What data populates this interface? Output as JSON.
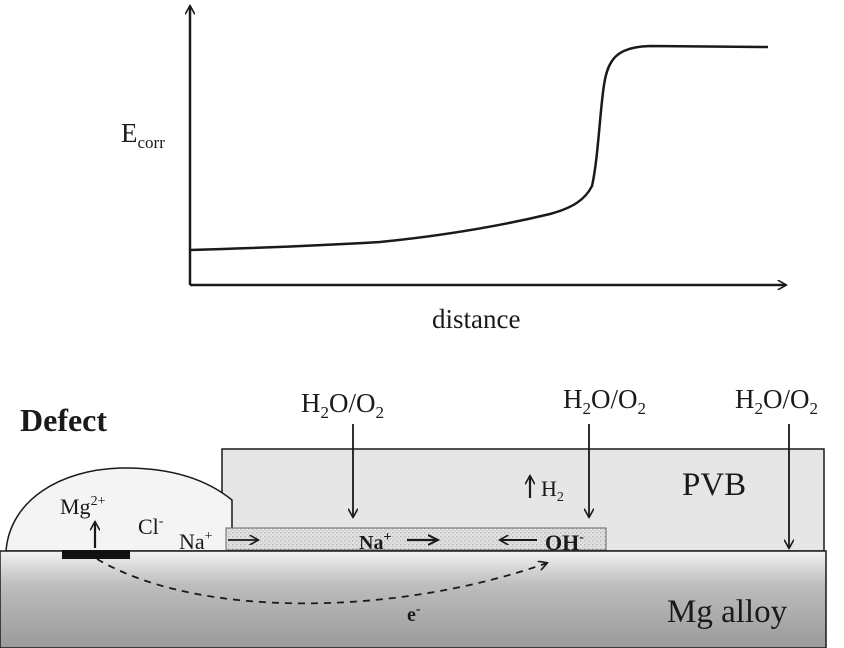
{
  "graph": {
    "y_label_main": "E",
    "y_label_sub": "corr",
    "x_label": "distance"
  },
  "diagram": {
    "defect_label": "Defect",
    "pvb_label": "PVB",
    "alloy_label": "Mg alloy",
    "water_oxygen": {
      "h2o_h": "H",
      "h2o_sub": "2",
      "h2o_mid": "O/O",
      "o2_sub": "2"
    },
    "h2_main": "H",
    "h2_sub": "2",
    "mg_main": "Mg",
    "mg_sup": "2+",
    "cl_main": "Cl",
    "cl_sup": "-",
    "na_main": "Na",
    "na_sup": "+",
    "na_bold_main": "Na",
    "na_bold_sup": "+",
    "oh_main": "OH",
    "oh_sup": "-",
    "electron_main": "e",
    "electron_sup": "-"
  },
  "colors": {
    "pvb_fill": "#e6e6e6",
    "defect_fill": "#f4f4f4",
    "dotted_layer": "#d2d2d2",
    "line": "#1a1a1a"
  }
}
